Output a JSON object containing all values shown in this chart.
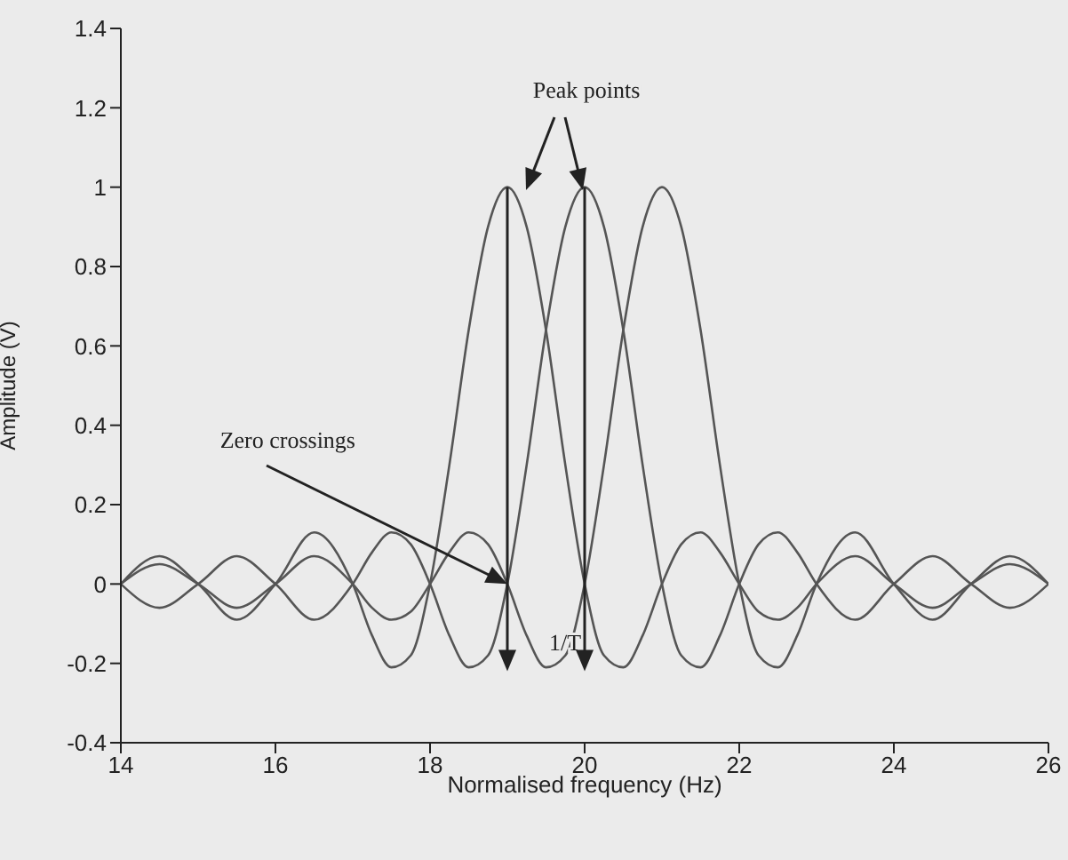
{
  "chart_data": {
    "type": "line",
    "xlabel": "Normalised frequency (Hz)",
    "ylabel": "Amplitude (V)",
    "xlim": [
      14,
      26
    ],
    "xticks": [
      14,
      16,
      18,
      20,
      22,
      24,
      26
    ],
    "ylim": [
      -0.4,
      1.4
    ],
    "yticks": [
      -0.4,
      -0.2,
      0,
      0.2,
      0.4,
      0.6,
      0.8,
      1,
      1.2,
      1.4
    ],
    "x": [
      14,
      14.5,
      15,
      15.5,
      16,
      16.5,
      17,
      17.25,
      17.5,
      17.75,
      18,
      18.25,
      18.5,
      18.75,
      19,
      19.25,
      19.5,
      19.75,
      20,
      20.25,
      20.5,
      20.75,
      21,
      21.25,
      21.5,
      21.75,
      22,
      22.25,
      22.5,
      22.75,
      23,
      23.5,
      24,
      24.5,
      25,
      25.5,
      26
    ],
    "series": [
      {
        "color": "#555555",
        "values": [
          0,
          0.07,
          0,
          -0.09,
          0,
          0.13,
          0,
          -0.13,
          -0.21,
          -0.18,
          0,
          0.3,
          0.64,
          0.9,
          1,
          0.9,
          0.64,
          0.3,
          0,
          -0.18,
          -0.21,
          -0.13,
          0,
          0.1,
          0.13,
          0.08,
          0,
          -0.07,
          -0.09,
          -0.06,
          0,
          0.07,
          0,
          -0.06,
          0,
          0.05,
          0
        ]
      },
      {
        "color": "#555555",
        "values": [
          0,
          -0.06,
          0,
          0.07,
          0,
          -0.09,
          0,
          0.08,
          0.13,
          0.1,
          0,
          -0.13,
          -0.21,
          -0.18,
          0,
          0.3,
          0.64,
          0.9,
          1,
          0.9,
          0.64,
          0.3,
          0,
          -0.18,
          -0.21,
          -0.13,
          0,
          0.1,
          0.13,
          0.08,
          0,
          -0.09,
          0,
          0.07,
          0,
          -0.06,
          0
        ]
      },
      {
        "color": "#555555",
        "values": [
          0,
          0.05,
          0,
          -0.06,
          0,
          0.07,
          0,
          -0.06,
          -0.09,
          -0.07,
          0,
          0.08,
          0.13,
          0.1,
          0,
          -0.13,
          -0.21,
          -0.18,
          0,
          0.3,
          0.64,
          0.9,
          1,
          0.9,
          0.64,
          0.3,
          0,
          -0.18,
          -0.21,
          -0.13,
          0,
          0.13,
          0,
          -0.09,
          0,
          0.07,
          0
        ]
      }
    ],
    "annotations": [
      "Peak points",
      {
        "text": "Zero crossings",
        "x": 19,
        "y": 0
      },
      "1/T"
    ]
  }
}
